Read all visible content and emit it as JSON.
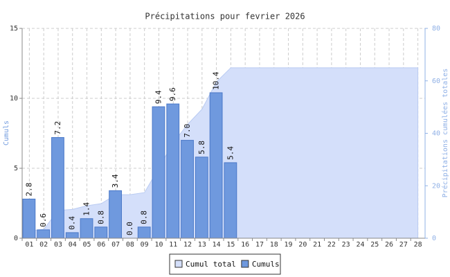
{
  "chart_data": {
    "type": "bar",
    "title": "Précipitations pour fevrier 2026",
    "ylabel": "Cumuls",
    "y2label": "Précipitations cumulées totales",
    "categories": [
      "01",
      "02",
      "03",
      "04",
      "05",
      "06",
      "07",
      "08",
      "09",
      "10",
      "11",
      "12",
      "13",
      "14",
      "15",
      "16",
      "17",
      "18",
      "19",
      "20",
      "21",
      "22",
      "23",
      "24",
      "25",
      "26",
      "27",
      "28"
    ],
    "series": [
      {
        "name": "Cumul total",
        "type": "area",
        "axis": "y2",
        "color": "#d4dffa",
        "values": [
          2.8,
          3.4,
          10.6,
          11.0,
          12.4,
          13.2,
          16.6,
          16.6,
          17.4,
          26.8,
          36.4,
          43.4,
          49.2,
          59.6,
          65.0,
          65.0,
          65.0,
          65.0,
          65.0,
          65.0,
          65.0,
          65.0,
          65.0,
          65.0,
          65.0,
          65.0,
          65.0,
          65.0
        ]
      },
      {
        "name": "Cumuls",
        "type": "bar",
        "color": "#6f99de",
        "values": [
          2.8,
          0.6,
          7.2,
          0.4,
          1.4,
          0.8,
          3.4,
          0,
          0.8,
          9.4,
          9.6,
          7,
          5.8,
          10.4,
          5.4,
          null,
          null,
          null,
          null,
          null,
          null,
          null,
          null,
          null,
          null,
          null,
          null,
          null
        ],
        "value_labels": [
          "2.8",
          "0.6",
          "7.2",
          "0.4",
          "1.4",
          "0.8",
          "3.4",
          "0.0",
          "0.8",
          "9.4",
          "9.6",
          "7.0",
          "5.8",
          "10.4",
          "5.4",
          null,
          null,
          null,
          null,
          null,
          null,
          null,
          null,
          null,
          null,
          null,
          null,
          null
        ]
      }
    ],
    "ylim": [
      0,
      15
    ],
    "yticks": [
      0,
      5,
      10,
      15
    ],
    "y2lim": [
      0,
      80
    ],
    "y2ticks": [
      0,
      20,
      40,
      60,
      80
    ],
    "grid": true,
    "legend": "bottom"
  }
}
